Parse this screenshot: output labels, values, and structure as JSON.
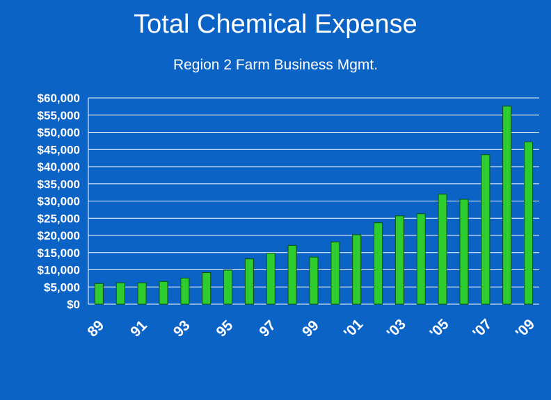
{
  "chart_data": {
    "type": "bar",
    "title": "Total Chemical Expense",
    "subtitle": "Region 2 Farm Business Mgmt.",
    "xlabel": "",
    "ylabel": "",
    "ylim": [
      0,
      60000
    ],
    "y_ticks": [
      "$0",
      "$5,000",
      "$10,000",
      "$15,000",
      "$20,000",
      "$25,000",
      "$30,000",
      "$35,000",
      "$40,000",
      "$45,000",
      "$50,000",
      "$55,000",
      "$60,000"
    ],
    "x_tick_labels": [
      "89",
      "91",
      "93",
      "95",
      "97",
      "99",
      "'01",
      "'03",
      "'05",
      "'07",
      "'09"
    ],
    "categories": [
      "89",
      "90",
      "91",
      "92",
      "93",
      "94",
      "95",
      "96",
      "97",
      "98",
      "99",
      "'00",
      "'01",
      "'02",
      "'03",
      "'04",
      "'05",
      "'06",
      "'07",
      "'08",
      "'09"
    ],
    "values": [
      6000,
      6200,
      6200,
      6600,
      7600,
      9200,
      9900,
      13200,
      14800,
      17100,
      13700,
      18100,
      20200,
      23700,
      25700,
      26300,
      32000,
      30500,
      43500,
      57600,
      47200
    ],
    "grid": true,
    "legend": "none",
    "colors": {
      "background": "#0b63c6",
      "bar": "#2ecc2e",
      "bar_edge": "#0a4f0a",
      "grid": "#ffffff",
      "text": "#ffffff"
    }
  }
}
